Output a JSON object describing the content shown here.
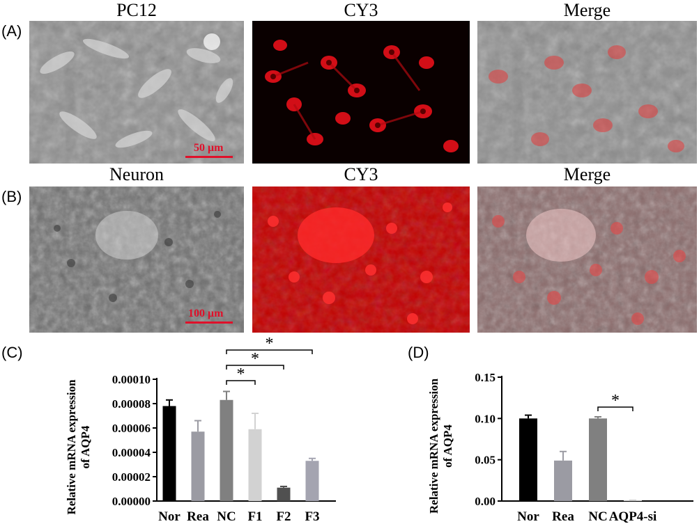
{
  "panels": {
    "A": {
      "letter": "(A)",
      "titles": [
        "PC12",
        "CY3",
        "Merge"
      ],
      "scale_bar": "50 μm"
    },
    "B": {
      "letter": "(B)",
      "titles": [
        "Neuron",
        "CY3",
        "Merge"
      ],
      "scale_bar": "100 μm"
    }
  },
  "colors": {
    "fluorescence": "#ff1a1a",
    "scale_bar": "#e0102a",
    "phase_bg": "#8c8c8c"
  },
  "chart_data": [
    {
      "panel_letter": "(C)",
      "type": "bar",
      "categories": [
        "Nor",
        "Rea",
        "NC",
        "F1",
        "F2",
        "F3"
      ],
      "values": [
        7.8e-05,
        5.7e-05,
        8.3e-05,
        5.9e-05,
        1.1e-05,
        3.3e-05
      ],
      "errors": [
        5e-06,
        9e-06,
        7e-06,
        1.3e-05,
        1e-06,
        2e-06
      ],
      "bar_colors": [
        "#000000",
        "#9b9ba3",
        "#808080",
        "#d2d2d2",
        "#505050",
        "#a4a4b0"
      ],
      "ylabel": "Relative mRNA expression of AQP4",
      "ylim": [
        0,
        0.0001
      ],
      "yticks": [
        "0.00000",
        "0.00002",
        "0.00004",
        "0.00006",
        "0.00008",
        "0.00010"
      ],
      "significance": [
        {
          "from": "NC",
          "to": "F1",
          "label": "*"
        },
        {
          "from": "NC",
          "to": "F2",
          "label": "*"
        },
        {
          "from": "NC",
          "to": "F3",
          "label": "*"
        }
      ]
    },
    {
      "panel_letter": "(D)",
      "type": "bar",
      "categories": [
        "Nor",
        "Rea",
        "NC",
        "AQP4-si"
      ],
      "values": [
        0.1,
        0.049,
        0.1,
        0.0005
      ],
      "errors": [
        0.004,
        0.011,
        0.002,
        0.0003
      ],
      "bar_colors": [
        "#000000",
        "#9b9ba3",
        "#808080",
        "#c8c8c8"
      ],
      "ylabel": "Relative mRNA expression of AQP4",
      "ylim": [
        0,
        0.15
      ],
      "yticks": [
        "0.00",
        "0.05",
        "0.10",
        "0.15"
      ],
      "significance": [
        {
          "from": "NC",
          "to": "AQP4-si",
          "label": "*"
        }
      ]
    }
  ]
}
